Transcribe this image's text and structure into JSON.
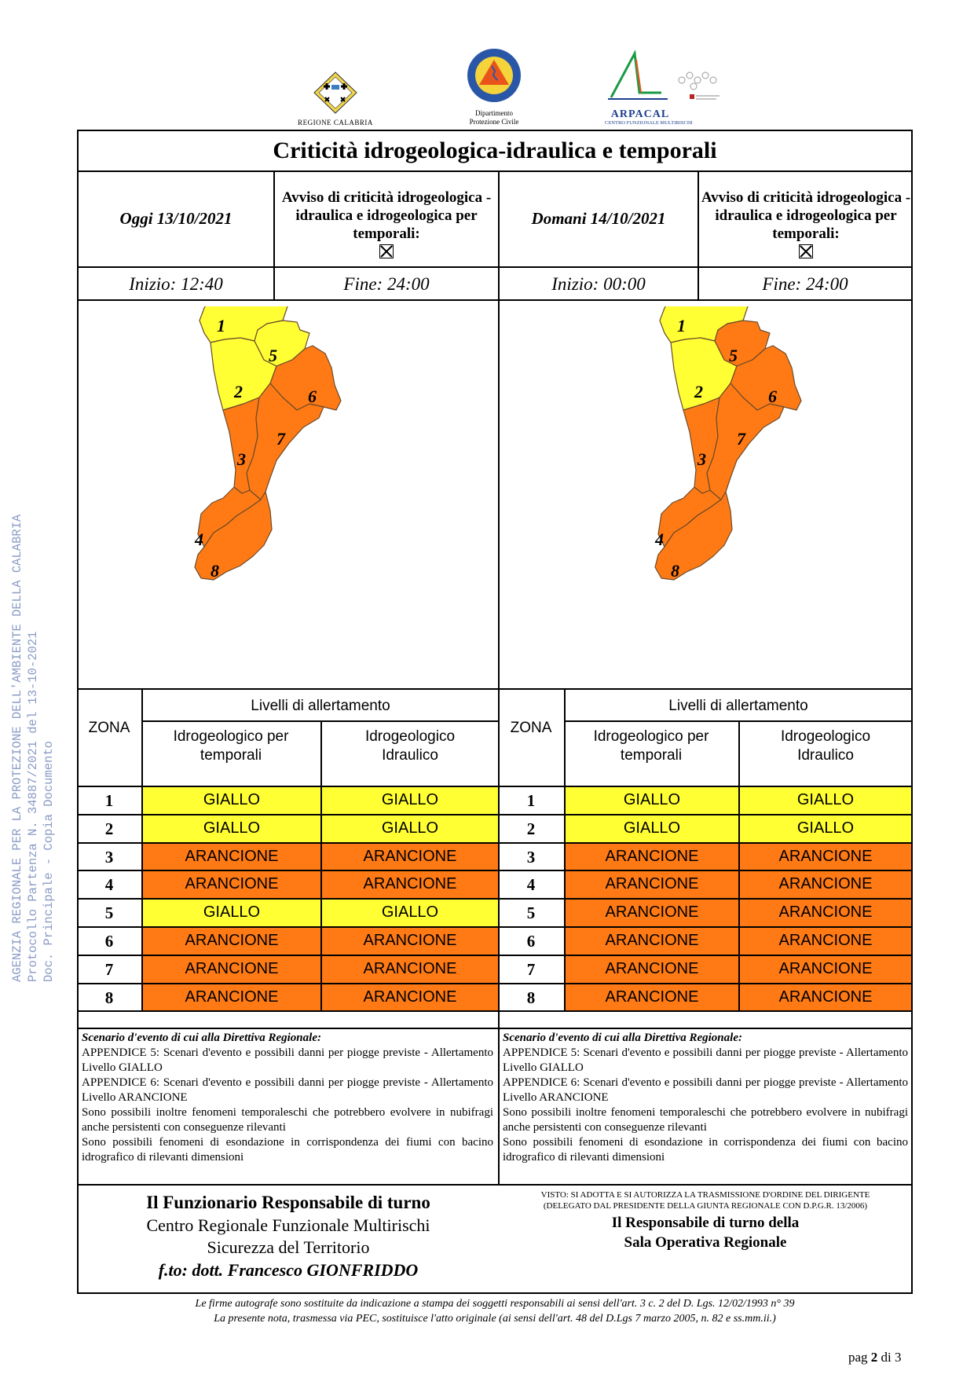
{
  "side_stamp": [
    "AGENZIA REGIONALE PER LA PROTEZIONE DELL'AMBIENTE DELLA CALABRIA",
    "Protocollo Partenza N. 34887/2021 del 13-10-2021",
    "Doc. Principale - Copia Documento"
  ],
  "logos": {
    "regione": "REGIONE CALABRIA",
    "protezione_line1": "Dipartimento",
    "protezione_line2": "Protezione Civile",
    "protezione_ring_top": "PROTEZIONE CIVILE",
    "protezione_ring_bottom": "Regione Calabria",
    "arpacal": "ARPACAL",
    "arpacal_sub": "CENTRO FUNZIONALE MULTIRISCHI"
  },
  "title": "Criticità idrogeologica-idraulica e temporali",
  "left": {
    "date": "Oggi 13/10/2021",
    "avviso": "Avviso di criticità idrogeologica - idraulica e idrogeologica per temporali:",
    "inizio": "Inizio: 12:40",
    "fine": "Fine: 24:00",
    "zone_colors": {
      "1": "#ffff33",
      "2": "#ffff33",
      "3": "#ff7a14",
      "4": "#ff7a14",
      "5": "#ffff33",
      "6": "#ff7a14",
      "7": "#ff7a14",
      "8": "#ff7a14"
    }
  },
  "right": {
    "date": "Domani 14/10/2021",
    "avviso": "Avviso di criticità idrogeologica - idraulica e idrogeologica per temporali:",
    "inizio": "Inizio: 00:00",
    "fine": "Fine: 24:00",
    "zone_colors": {
      "1": "#ffff33",
      "2": "#ffff33",
      "3": "#ff7a14",
      "4": "#ff7a14",
      "5": "#ff7a14",
      "6": "#ff7a14",
      "7": "#ff7a14",
      "8": "#ff7a14"
    }
  },
  "table": {
    "zona": "ZONA",
    "livelli": "Livelli di allertamento",
    "col1": "Idrogeologico per temporali",
    "col2": "Idrogeologico Idraulico",
    "left_rows": [
      {
        "z": "1",
        "a": "GIALLO",
        "b": "GIALLO"
      },
      {
        "z": "2",
        "a": "GIALLO",
        "b": "GIALLO"
      },
      {
        "z": "3",
        "a": "ARANCIONE",
        "b": "ARANCIONE"
      },
      {
        "z": "4",
        "a": "ARANCIONE",
        "b": "ARANCIONE"
      },
      {
        "z": "5",
        "a": "GIALLO",
        "b": "GIALLO"
      },
      {
        "z": "6",
        "a": "ARANCIONE",
        "b": "ARANCIONE"
      },
      {
        "z": "7",
        "a": "ARANCIONE",
        "b": "ARANCIONE"
      },
      {
        "z": "8",
        "a": "ARANCIONE",
        "b": "ARANCIONE"
      }
    ],
    "right_rows": [
      {
        "z": "1",
        "a": "GIALLO",
        "b": "GIALLO"
      },
      {
        "z": "2",
        "a": "GIALLO",
        "b": "GIALLO"
      },
      {
        "z": "3",
        "a": "ARANCIONE",
        "b": "ARANCIONE"
      },
      {
        "z": "4",
        "a": "ARANCIONE",
        "b": "ARANCIONE"
      },
      {
        "z": "5",
        "a": "ARANCIONE",
        "b": "ARANCIONE"
      },
      {
        "z": "6",
        "a": "ARANCIONE",
        "b": "ARANCIONE"
      },
      {
        "z": "7",
        "a": "ARANCIONE",
        "b": "ARANCIONE"
      },
      {
        "z": "8",
        "a": "ARANCIONE",
        "b": "ARANCIONE"
      }
    ],
    "colors": {
      "GIALLO": "#ffff33",
      "ARANCIONE": "#ff7a14"
    }
  },
  "scenario": {
    "heading": "Scenario d'evento di cui alla Direttiva Regionale:",
    "lines": [
      "APPENDICE 5: Scenari d'evento e possibili danni per piogge previste - Allertamento Livello GIALLO",
      "APPENDICE 6: Scenari d'evento e possibili danni per piogge previste - Allertamento Livello ARANCIONE",
      "Sono possibili inoltre fenomeni temporaleschi che potrebbero evolvere in nubifragi anche persistenti con conseguenze rilevanti",
      "Sono possibili fenomeni di esondazione in corrispondenza dei fiumi con bacino idrografico di rilevanti dimensioni"
    ]
  },
  "footer": {
    "l1": "Il Funzionario Responsabile di turno",
    "l2": "Centro Regionale Funzionale Multirischi",
    "l3": "Sicurezza del Territorio",
    "l4": "f.to: dott. Francesco GIONFRIDDO",
    "r1": "VISTO: SI ADOTTA E SI AUTORIZZA LA TRASMISSIONE D'ORDINE DEL DIRIGENTE",
    "r2": "(DELEGATO DAL PRESIDENTE DELLA GIUNTA REGIONALE CON D.P.G.R. 13/2006)",
    "r3": "Il Responsabile di turno della",
    "r4": "Sala Operativa Regionale"
  },
  "notes": {
    "n1": "Le firme autografe sono sostituite da indicazione a stampa dei soggetti responsabili ai sensi dell'art. 3 c. 2 del D. Lgs. 12/02/1993 n° 39",
    "n2": "La presente nota, trasmessa via PEC, sostituisce l'atto originale (ai sensi dell'art. 48 del D.Lgs 7 marzo 2005, n. 82 e ss.mm.ii.)"
  },
  "page": {
    "prefix": "pag ",
    "num": "2",
    "suffix": " di 3"
  }
}
